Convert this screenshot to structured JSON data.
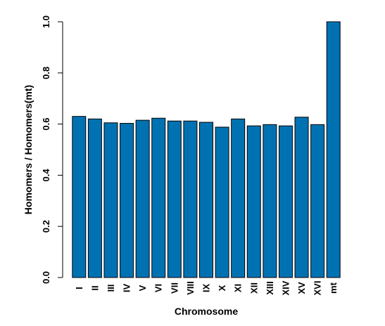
{
  "chart_data": {
    "type": "bar",
    "title": "",
    "xlabel": "Chromosome",
    "ylabel": "Homomers / Homomers(mt)",
    "categories": [
      "I",
      "II",
      "III",
      "IV",
      "V",
      "VI",
      "VII",
      "VIII",
      "IX",
      "X",
      "XI",
      "XII",
      "XIII",
      "XIV",
      "XV",
      "XVI",
      "mt"
    ],
    "values": [
      0.63,
      0.62,
      0.605,
      0.603,
      0.615,
      0.623,
      0.612,
      0.612,
      0.607,
      0.588,
      0.62,
      0.593,
      0.598,
      0.593,
      0.627,
      0.598,
      1.0
    ],
    "ylim": [
      0,
      1
    ],
    "yticks": [
      "0.0",
      "0.2",
      "0.4",
      "0.6",
      "0.8",
      "1.0"
    ],
    "ytick_values": [
      0,
      0.2,
      0.4,
      0.6,
      0.8,
      1.0
    ],
    "grid": false,
    "legend": "none",
    "bar_color": "#0072B2",
    "bar_border_color": "#000000"
  }
}
